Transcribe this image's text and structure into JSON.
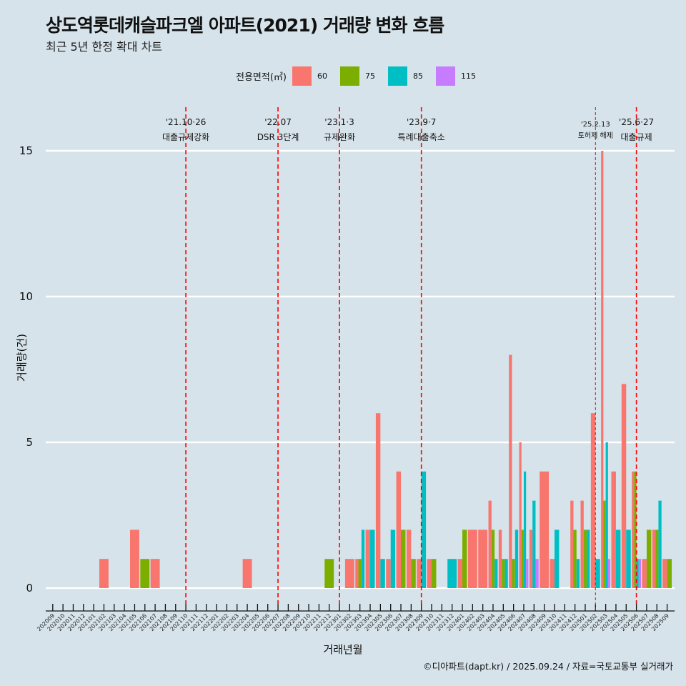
{
  "chart_data": {
    "type": "bar",
    "title": "상도역롯데캐슬파크엘 아파트(2021) 거래량 변화 흐름",
    "subtitle": "최근 5년 한정 확대 차트",
    "xlabel": "거래년월",
    "ylabel": "거래량(건)",
    "caption": "©디아파트(dapt.kr) / 2025.09.24 / 자료=국토교통부 실거래가",
    "legend_title": "전용면적(㎡)",
    "legend_position": "top",
    "ylim": [
      0,
      16.5
    ],
    "yticks": [
      0,
      5,
      10,
      15
    ],
    "grid": true,
    "categories": [
      "202009",
      "202010",
      "202011",
      "202012",
      "202101",
      "202102",
      "202103",
      "202104",
      "202105",
      "202106",
      "202107",
      "202108",
      "202109",
      "202110",
      "202111",
      "202112",
      "202201",
      "202202",
      "202203",
      "202204",
      "202205",
      "202206",
      "202207",
      "202208",
      "202209",
      "202210",
      "202211",
      "202212",
      "202301",
      "202302",
      "202303",
      "202304",
      "202305",
      "202306",
      "202307",
      "202308",
      "202309",
      "202310",
      "202311",
      "202312",
      "202401",
      "202402",
      "202403",
      "202404",
      "202405",
      "202406",
      "202407",
      "202408",
      "202409",
      "202410",
      "202411",
      "202412",
      "202501",
      "202502",
      "202503",
      "202504",
      "202505",
      "202506",
      "202507",
      "202508",
      "202509"
    ],
    "series": [
      {
        "name": "60",
        "color": "#F8766D",
        "values": [
          0,
          0,
          0,
          0,
          0,
          1,
          0,
          0,
          2,
          0,
          1,
          0,
          0,
          0,
          0,
          0,
          0,
          0,
          0,
          1,
          0,
          0,
          0,
          0,
          0,
          0,
          0,
          0,
          0,
          1,
          1,
          2,
          6,
          1,
          4,
          2,
          1,
          1,
          0,
          0,
          1,
          2,
          2,
          3,
          2,
          8,
          5,
          2,
          4,
          1,
          0,
          3,
          3,
          6,
          15,
          4,
          7,
          4,
          1,
          2,
          1
        ]
      },
      {
        "name": "75",
        "color": "#7CAE00",
        "values": [
          0,
          0,
          0,
          0,
          0,
          0,
          0,
          0,
          0,
          1,
          0,
          0,
          0,
          0,
          0,
          0,
          0,
          0,
          0,
          0,
          0,
          0,
          0,
          0,
          0,
          0,
          0,
          1,
          0,
          0,
          1,
          0,
          0,
          0,
          2,
          1,
          0,
          1,
          0,
          0,
          2,
          0,
          0,
          2,
          1,
          1,
          2,
          0,
          0,
          0,
          0,
          2,
          2,
          0,
          3,
          0,
          0,
          4,
          2,
          2,
          1
        ]
      },
      {
        "name": "85",
        "color": "#00BFC4",
        "values": [
          0,
          0,
          0,
          0,
          0,
          0,
          0,
          0,
          0,
          0,
          0,
          0,
          0,
          0,
          0,
          0,
          0,
          0,
          0,
          0,
          0,
          0,
          0,
          0,
          0,
          0,
          0,
          0,
          0,
          0,
          2,
          2,
          1,
          2,
          0,
          0,
          4,
          0,
          0,
          1,
          0,
          0,
          0,
          1,
          1,
          2,
          4,
          3,
          0,
          2,
          0,
          1,
          2,
          1,
          5,
          2,
          2,
          1,
          0,
          3,
          0
        ]
      },
      {
        "name": "115",
        "color": "#C77CFF",
        "values": [
          0,
          0,
          0,
          0,
          0,
          0,
          0,
          0,
          0,
          0,
          0,
          0,
          0,
          0,
          0,
          0,
          0,
          0,
          0,
          0,
          0,
          0,
          0,
          0,
          0,
          0,
          0,
          0,
          0,
          0,
          0,
          0,
          0,
          0,
          0,
          0,
          0,
          0,
          0,
          0,
          0,
          0,
          0,
          0,
          0,
          0,
          1,
          1,
          0,
          0,
          0,
          0,
          0,
          0,
          1,
          0,
          0,
          1,
          0,
          0,
          0
        ]
      }
    ],
    "annotations": [
      {
        "month": "202110",
        "date": "'21.10·26",
        "label": "대출규제강화",
        "minor": false
      },
      {
        "month": "202207",
        "date": "'22.07",
        "label": "DSR 3단계",
        "minor": false
      },
      {
        "month": "202301",
        "date": "'23.1·3",
        "label": "규제완화",
        "minor": false
      },
      {
        "month": "202309",
        "date": "'23.9·7",
        "label": "특례대출축소",
        "minor": false
      },
      {
        "month": "202502",
        "date": "'25.2.13",
        "label": "토허제 해제",
        "minor": true
      },
      {
        "month": "202506",
        "date": "'25.6·27",
        "label": "대출규제",
        "minor": false
      }
    ],
    "annotation_color": "#FF0000"
  }
}
